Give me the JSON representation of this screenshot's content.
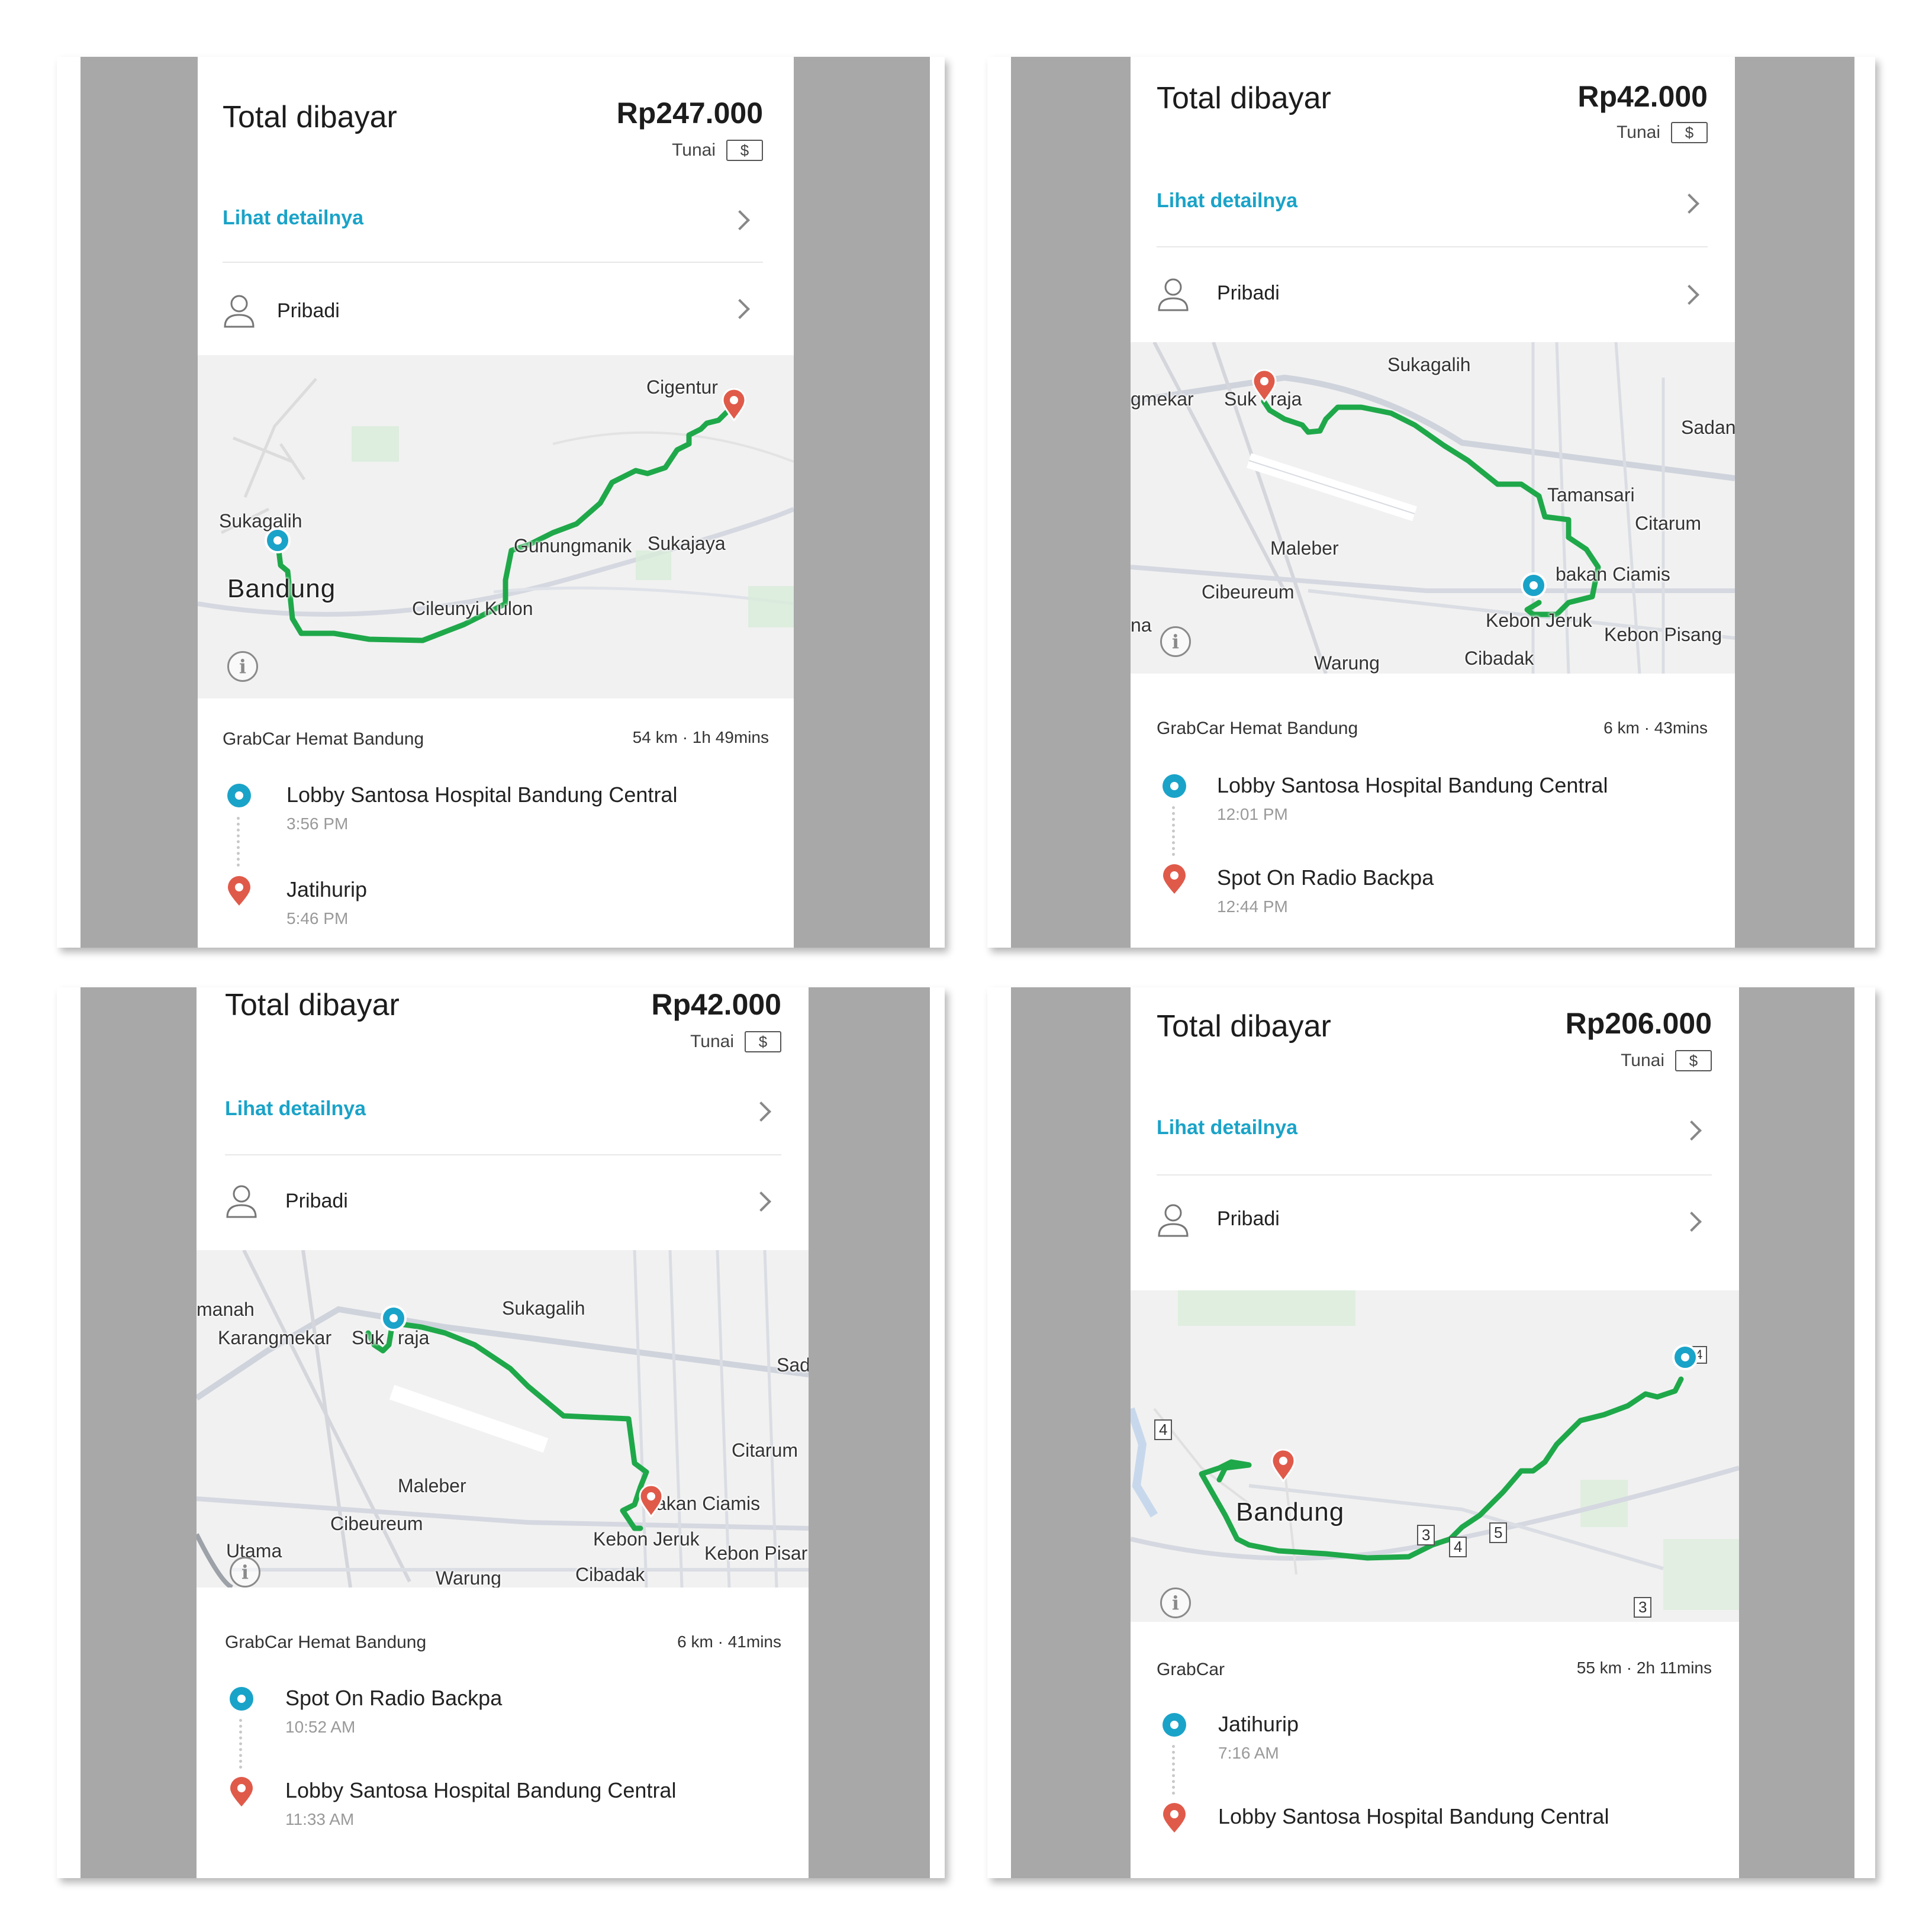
{
  "panels": [
    {
      "total_label": "Total dibayar",
      "amount": "Rp247.000",
      "payment": "Tunai",
      "payment_icon": "$",
      "detail_link": "Lihat detailnya",
      "profile": "Pribadi",
      "service": "GrabCar Hemat Bandung",
      "meta": "54 km · 1h 49mins",
      "pickup": {
        "name": "Lobby Santosa Hospital Bandung Central",
        "time": "3:56 PM"
      },
      "dropoff": {
        "name": "Jatihurip",
        "time": "5:46 PM"
      },
      "map_labels": [
        "Cigentur",
        "Sukagalih",
        "Gunungmanik",
        "Sukajaya",
        "Bandung",
        "Cileunyi Kulon"
      ]
    },
    {
      "total_label": "Total dibayar",
      "amount": "Rp42.000",
      "payment": "Tunai",
      "payment_icon": "$",
      "detail_link": "Lihat detailnya",
      "profile": "Pribadi",
      "service": "GrabCar Hemat Bandung",
      "meta": "6 km · 43mins",
      "pickup": {
        "name": "Lobby Santosa Hospital Bandung Central",
        "time": "12:01 PM"
      },
      "dropoff": {
        "name": "Spot On Radio Backpa",
        "time": "12:44 PM"
      },
      "map_labels": [
        "Sukagalih",
        "gmekar",
        "Suk",
        "raja",
        "Sadan",
        "Tamansari",
        "Citarum",
        "Maleber",
        "Cibeureum",
        "bakan Ciamis",
        "Kebon Jeruk",
        "Kebon Pisang",
        "na",
        "Warung",
        "Cibadak"
      ]
    },
    {
      "total_label": "Total dibayar",
      "amount": "Rp42.000",
      "payment": "Tunai",
      "payment_icon": "$",
      "detail_link": "Lihat detailnya",
      "profile": "Pribadi",
      "service": "GrabCar Hemat Bandung",
      "meta": "6 km · 41mins",
      "pickup": {
        "name": "Spot On Radio Backpa",
        "time": "10:52 AM"
      },
      "dropoff": {
        "name": "Lobby Santosa Hospital Bandung Central",
        "time": "11:33 AM"
      },
      "map_labels": [
        "manah",
        "Sukagalih",
        "Karangmekar",
        "Suk",
        "raja",
        "Sada",
        "Citarum",
        "Maleber",
        "Cibeureum",
        "akan Ciamis",
        "Utama",
        "Kebon Jeruk",
        "Kebon Pisar",
        "Warung",
        "Cibadak"
      ]
    },
    {
      "total_label": "Total dibayar",
      "amount": "Rp206.000",
      "payment": "Tunai",
      "payment_icon": "$",
      "detail_link": "Lihat detailnya",
      "profile": "Pribadi",
      "service": "GrabCar",
      "meta": "55 km · 2h 11mins",
      "pickup": {
        "name": "Jatihurip",
        "time": "7:16 AM"
      },
      "dropoff": {
        "name": "Lobby Santosa Hospital Bandung Central",
        "time": ""
      },
      "map_labels": [
        "Bandung",
        "4",
        "3",
        "4",
        "5",
        "3",
        "4"
      ]
    }
  ],
  "colors": {
    "route": "#1fa84a",
    "pickup": "#1aa3c8",
    "dropoff": "#e05a4a",
    "link": "#1aa3c8",
    "gutter": "#a8a8a8"
  }
}
